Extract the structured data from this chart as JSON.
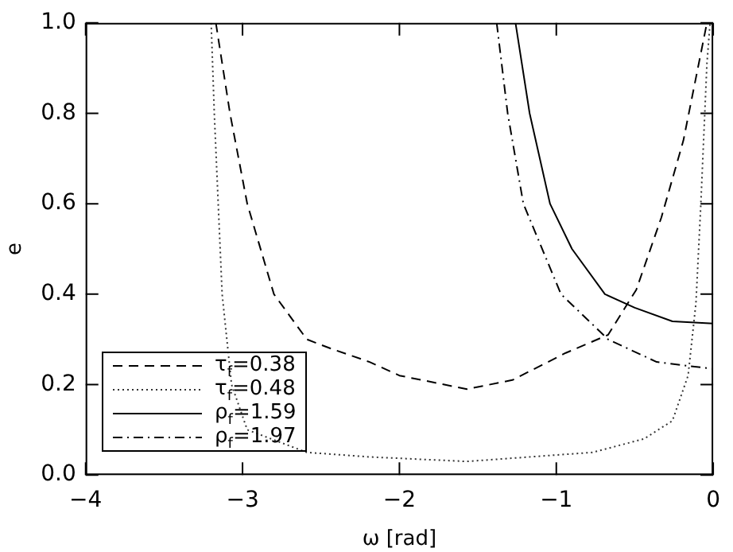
{
  "chart_data": {
    "type": "line",
    "xlabel": "ω [rad]",
    "ylabel": "e",
    "xlim": [
      -4,
      0
    ],
    "ylim": [
      0,
      1
    ],
    "xticks": [
      {
        "value": -4,
        "label": "−4"
      },
      {
        "value": -3,
        "label": "−3"
      },
      {
        "value": -2,
        "label": "−2"
      },
      {
        "value": -1,
        "label": "−1"
      },
      0
    ],
    "yticks": [
      {
        "value": 0,
        "label": "0.0"
      },
      {
        "value": 0.2,
        "label": "0.2"
      },
      {
        "value": 0.4,
        "label": "0.4"
      },
      {
        "value": 0.6,
        "label": "0.6"
      },
      {
        "value": 0.8,
        "label": "0.8"
      },
      {
        "value": 1,
        "label": "1.0"
      }
    ],
    "grid": false,
    "legend": "bottom left",
    "marker": "none",
    "series": [
      {
        "name": "τ$_{f}$=0.38",
        "color": "#000000",
        "line_style": "dashed",
        "x": [
          -3.17,
          -3.08,
          -2.97,
          -2.8,
          -2.59,
          -2.44,
          -2.19,
          -2,
          -1.57,
          -1.28,
          -0.94,
          -0.67,
          -0.49,
          -0.33,
          -0.19,
          -0.04
        ],
        "values": [
          1.0,
          0.8,
          0.6,
          0.4,
          0.3,
          0.28,
          0.25,
          0.22,
          0.19,
          0.21,
          0.27,
          0.31,
          0.41,
          0.57,
          0.74,
          1.0
        ]
      },
      {
        "name": "τ$_{f}$=0.48",
        "color": "#333333",
        "line_style": "dotted",
        "x": [
          -3.2,
          -3.18,
          -3.13,
          -3.07,
          -2.97,
          -2.59,
          -2.19,
          -1.57,
          -0.77,
          -0.44,
          -0.26,
          -0.16,
          -0.11,
          -0.08,
          -0.04,
          -0.02
        ],
        "values": [
          1.0,
          0.8,
          0.4,
          0.2,
          0.1,
          0.05,
          0.04,
          0.03,
          0.05,
          0.08,
          0.12,
          0.22,
          0.38,
          0.59,
          0.91,
          1.0
        ]
      },
      {
        "name": "ρ$_{f}$=1.59",
        "color": "#000000",
        "line_style": "solid",
        "x": [
          -1.26,
          -1.17,
          -1.04,
          -0.9,
          -0.69,
          -0.5,
          -0.26,
          0
        ],
        "values": [
          1.0,
          0.8,
          0.6,
          0.5,
          0.4,
          0.37,
          0.34,
          0.335
        ]
      },
      {
        "name": "ρ$_{f}$=1.97",
        "color": "#000000",
        "line_style": "dashdot",
        "x": [
          -1.38,
          -1.31,
          -1.21,
          -0.97,
          -0.67,
          -0.36,
          -0.13,
          0
        ],
        "values": [
          1.0,
          0.8,
          0.6,
          0.4,
          0.3,
          0.25,
          0.24,
          0.235
        ]
      }
    ]
  }
}
